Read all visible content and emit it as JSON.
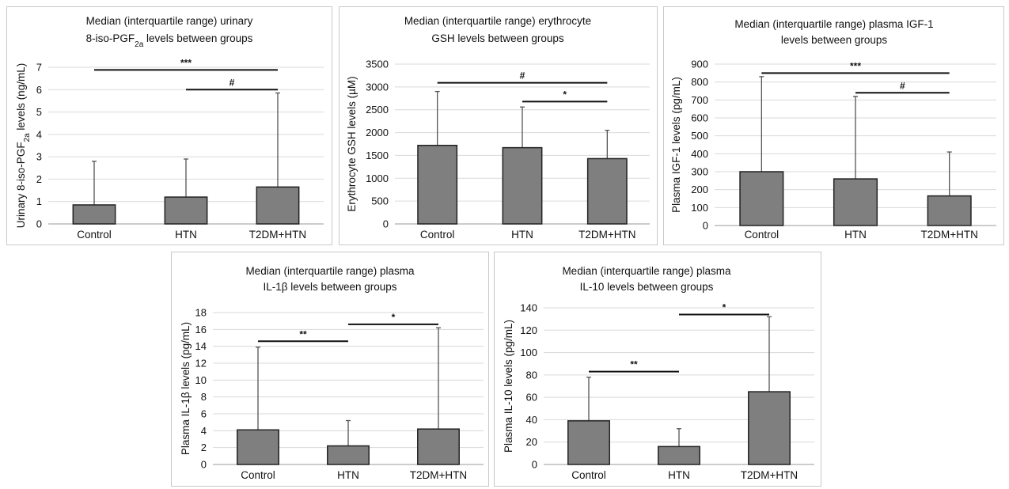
{
  "chart_data": [
    {
      "type": "bar",
      "title_lines": [
        "Median (interquartile range) urinary",
        "8-iso-PGF2a levels between groups"
      ],
      "ylabel": "Urinary 8-iso-PGF2a levels (ng/mL)",
      "categories": [
        "Control",
        "HTN",
        "T2DM+HTN"
      ],
      "values": [
        0.85,
        1.2,
        1.65
      ],
      "error_upper": [
        2.8,
        2.9,
        5.85
      ],
      "ylim": [
        0,
        7
      ],
      "yticks": [
        0,
        1,
        2,
        3,
        4,
        5,
        6,
        7
      ],
      "significance": [
        {
          "from": 0,
          "to": 2,
          "y": 6.88,
          "label": "***"
        },
        {
          "from": 1,
          "to": 2,
          "y": 6.0,
          "label": "#"
        }
      ],
      "grid": true
    },
    {
      "type": "bar",
      "title_lines": [
        "Median (interquartile range) erythrocyte",
        "GSH levels between groups"
      ],
      "ylabel": "Erythrocyte GSH levels (µM)",
      "categories": [
        "Control",
        "HTN",
        "T2DM+HTN"
      ],
      "values": [
        1720,
        1670,
        1430
      ],
      "error_upper": [
        2900,
        2560,
        2050
      ],
      "ylim": [
        0,
        3500
      ],
      "yticks": [
        0,
        500,
        1000,
        1500,
        2000,
        2500,
        3000,
        3500
      ],
      "significance": [
        {
          "from": 0,
          "to": 2,
          "y": 3090,
          "label": "#"
        },
        {
          "from": 1,
          "to": 2,
          "y": 2680,
          "label": "*"
        }
      ],
      "grid": true
    },
    {
      "type": "bar",
      "title_lines": [
        "Median (interquartile range) plasma IGF-1",
        "levels between groups"
      ],
      "ylabel": "Plasma IGF-1 levels (pg/mL)",
      "categories": [
        "Control",
        "HTN",
        "T2DM+HTN"
      ],
      "values": [
        300,
        260,
        165
      ],
      "error_upper": [
        830,
        720,
        410
      ],
      "ylim": [
        0,
        900
      ],
      "yticks": [
        0,
        100,
        200,
        300,
        400,
        500,
        600,
        700,
        800,
        900
      ],
      "significance": [
        {
          "from": 0,
          "to": 2,
          "y": 850,
          "label": "***"
        },
        {
          "from": 1,
          "to": 2,
          "y": 740,
          "label": "#"
        }
      ],
      "grid": true
    },
    {
      "type": "bar",
      "title_lines": [
        "Median (interquartile range) plasma",
        "IL-1β levels between groups"
      ],
      "ylabel": "Plasma IL-1β levels (pg/mL)",
      "categories": [
        "Control",
        "HTN",
        "T2DM+HTN"
      ],
      "values": [
        4.1,
        2.2,
        4.2
      ],
      "error_upper": [
        13.9,
        5.2,
        16.2
      ],
      "ylim": [
        0,
        18
      ],
      "yticks": [
        0,
        2,
        4,
        6,
        8,
        10,
        12,
        14,
        16,
        18
      ],
      "significance": [
        {
          "from": 0,
          "to": 1,
          "y": 14.6,
          "label": "**"
        },
        {
          "from": 1,
          "to": 2,
          "y": 16.6,
          "label": "*"
        }
      ],
      "grid": true
    },
    {
      "type": "bar",
      "title_lines": [
        "Median (interquartile range) plasma",
        "IL-10 levels between groups"
      ],
      "ylabel": "Plasma IL-10 levels (pg/mL)",
      "categories": [
        "Control",
        "HTN",
        "T2DM+HTN"
      ],
      "values": [
        39,
        16,
        65
      ],
      "error_upper": [
        78,
        32,
        132
      ],
      "ylim": [
        0,
        140
      ],
      "yticks": [
        0,
        20,
        40,
        60,
        80,
        100,
        120,
        140
      ],
      "significance": [
        {
          "from": 0,
          "to": 1,
          "y": 83,
          "label": "**"
        },
        {
          "from": 1,
          "to": 2,
          "y": 134,
          "label": "*"
        }
      ],
      "grid": true
    }
  ],
  "colors": {
    "bar": "#7f7f7f",
    "bar_edge": "#222222",
    "grid": "#d9d9d9",
    "axis": "#999999"
  }
}
